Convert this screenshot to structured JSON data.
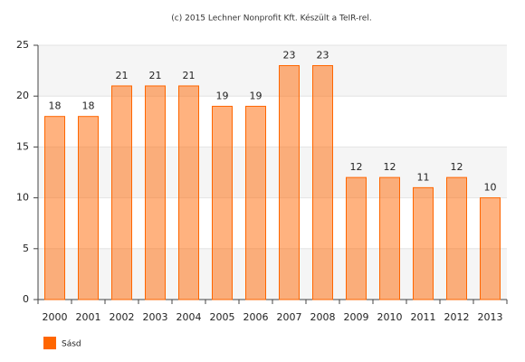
{
  "chart_data": {
    "type": "bar",
    "title": "(c) 2015 Lechner Nonprofit Kft. Készült a TeIR-rel.",
    "categories": [
      "2000",
      "2001",
      "2002",
      "2003",
      "2004",
      "2005",
      "2006",
      "2007",
      "2008",
      "2009",
      "2010",
      "2011",
      "2012",
      "2013"
    ],
    "series": [
      {
        "name": "Sásd",
        "color": "#ff6600",
        "values": [
          18,
          18,
          21,
          21,
          21,
          19,
          19,
          23,
          23,
          12,
          12,
          11,
          12,
          10
        ]
      }
    ],
    "ylim": [
      0,
      25
    ],
    "yticks": [
      0,
      5,
      10,
      15,
      20,
      25
    ],
    "grid": true
  }
}
